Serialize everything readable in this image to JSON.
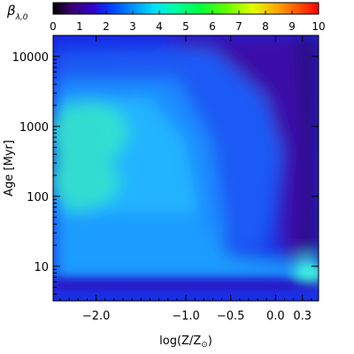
{
  "chart_data": {
    "type": "heatmap",
    "colorbar": {
      "label_main": "β",
      "label_sub": "λ,0",
      "range": [
        0,
        10
      ],
      "ticks": [
        "0",
        "1",
        "2",
        "3",
        "4",
        "5",
        "6",
        "7",
        "8",
        "9",
        "10"
      ],
      "colormap": "rainbow (black-purple-blue-cyan-green-yellow-red)"
    },
    "x_axis": {
      "label": "log(Z/Z",
      "label_sub": "⊙",
      "label_close": ")",
      "range": [
        -2.48,
        0.48
      ],
      "ticks": [
        {
          "value": -2.0,
          "label": "−2.0"
        },
        {
          "value": -1.0,
          "label": "−1.0"
        },
        {
          "value": -0.5,
          "label": "−0.5"
        },
        {
          "value": 0.0,
          "label": "0.0"
        },
        {
          "value": 0.3,
          "label": "0.3"
        }
      ]
    },
    "y_axis": {
      "label": "Age [Myr]",
      "scale": "log",
      "range": [
        3.2,
        20000
      ],
      "ticks": [
        {
          "value": 10,
          "label": "10"
        },
        {
          "value": 100,
          "label": "100"
        },
        {
          "value": 1000,
          "label": "1000"
        },
        {
          "value": 10000,
          "label": "10000"
        }
      ]
    },
    "features": [
      {
        "region": "low metallicity, 100–1000 Myr",
        "value": 4.0
      },
      {
        "region": "low metallicity, ~20 Myr",
        "value": 3.2
      },
      {
        "region": "high metallicity, old ages",
        "value": 0.6
      },
      {
        "region": "young ages < 5 Myr",
        "value": 1.2
      },
      {
        "region": "Z ~ 0.3, ~7 Myr",
        "value": 3.3
      }
    ]
  }
}
